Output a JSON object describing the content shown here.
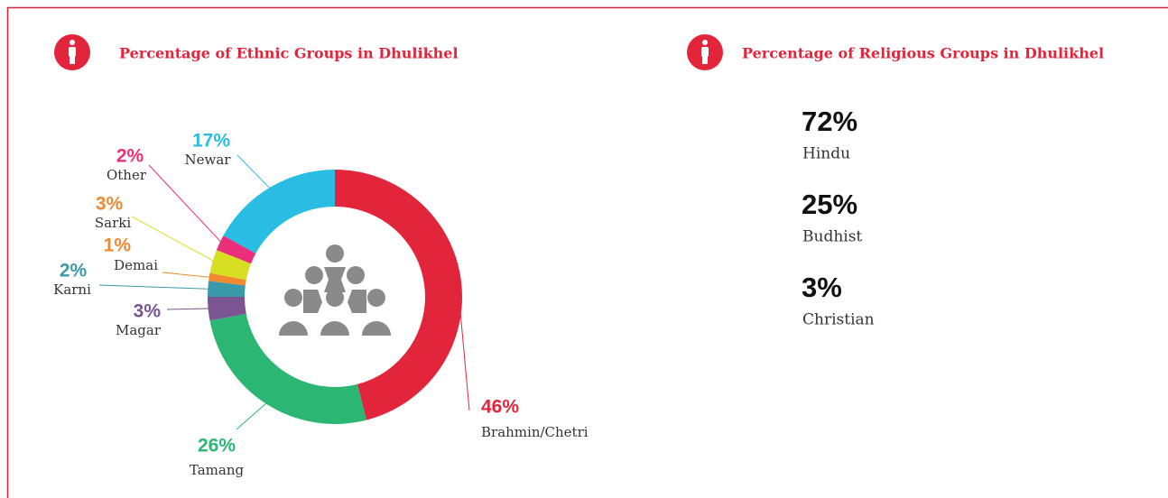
{
  "chart_data": [
    {
      "type": "donut",
      "title": "Percentage of Ethnic Groups in Dhulikhel",
      "categories": [
        "Brahmin/Chetri",
        "Tamang",
        "Magar",
        "Karni",
        "Demai",
        "Sarki",
        "Other",
        "Newar"
      ],
      "values": [
        46,
        26,
        3,
        2,
        1,
        3,
        2,
        17
      ],
      "value_labels": [
        "46%",
        "26%",
        "3%",
        "2%",
        "1%",
        "3%",
        "2%",
        "17%"
      ],
      "colors": [
        "#e3253b",
        "#2bb673",
        "#7b5591",
        "#3b9aaa",
        "#f0892f",
        "#d7df23",
        "#ec2f7b",
        "#29bde3"
      ],
      "label_colors": [
        "#e3253b",
        "#2bb673",
        "#7b5591",
        "#3b9aaa",
        "#f0892f",
        "#f0892f",
        "#ec2f7b",
        "#29bde3"
      ]
    },
    {
      "type": "stat",
      "title": "Percentage of Religious Groups in Dhulikhel",
      "categories": [
        "Hindu",
        "Budhist",
        "Christian"
      ],
      "values": [
        72,
        25,
        3
      ],
      "value_labels": [
        "72%",
        "25%",
        "3%"
      ]
    }
  ]
}
